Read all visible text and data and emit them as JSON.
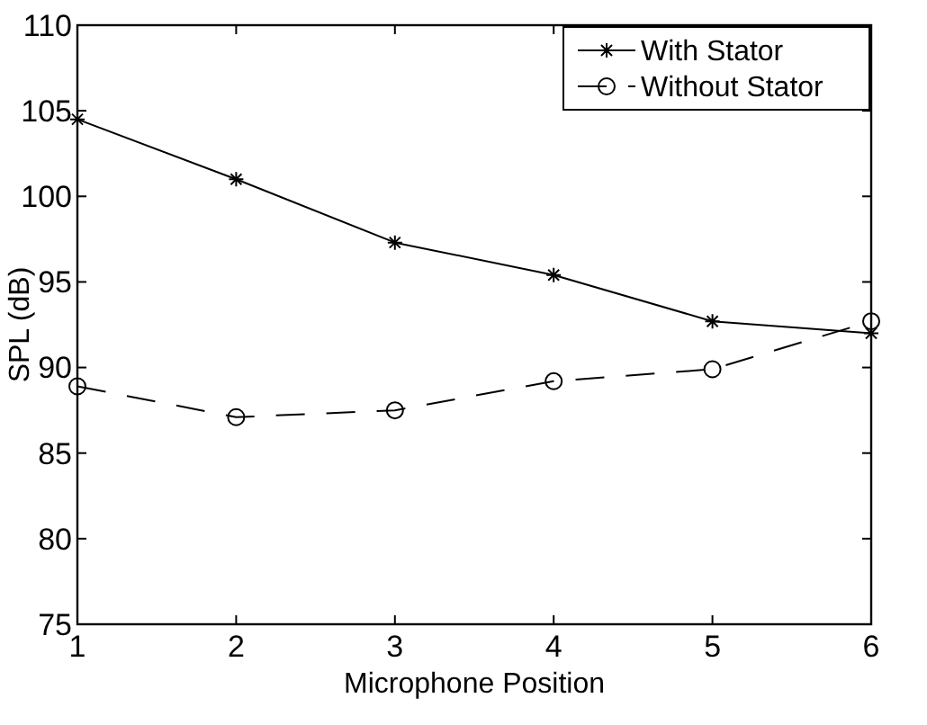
{
  "chart_data": {
    "type": "line",
    "xlabel": "Microphone Position",
    "ylabel": "SPL (dB)",
    "x": [
      1,
      2,
      3,
      4,
      5,
      6
    ],
    "xlim": [
      1,
      6
    ],
    "xticks": [
      1,
      2,
      3,
      4,
      5,
      6
    ],
    "ylim": [
      75,
      110
    ],
    "yticks": [
      75,
      80,
      85,
      90,
      95,
      100,
      105,
      110
    ],
    "grid": false,
    "legend": "top right",
    "series": [
      {
        "name": "With Stator",
        "color": "#000000",
        "marker": "cross",
        "line_style": "solid",
        "values": [
          104.5,
          101.0,
          97.3,
          95.4,
          92.7,
          92.0
        ]
      },
      {
        "name": "Without Stator",
        "color": "#000000",
        "marker": "circle",
        "line_style": "dashed",
        "values": [
          88.9,
          87.1,
          87.5,
          89.2,
          89.9,
          92.7
        ]
      }
    ]
  }
}
